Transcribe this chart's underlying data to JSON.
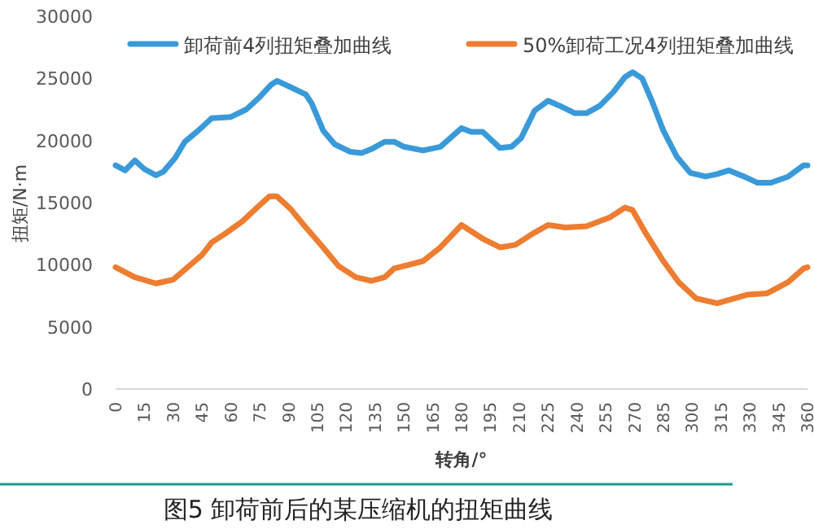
{
  "chart_data": {
    "type": "line",
    "ylabel": "扭矩/N·m",
    "xlabel": "转角/°",
    "legend": "top",
    "grid": false,
    "marker": "none",
    "line_style": "solid",
    "annotations": [
      "图5 卸荷前后的某压缩机的扭矩曲线"
    ],
    "xlim": [
      0,
      360
    ],
    "xticks": [
      0,
      15,
      30,
      45,
      60,
      75,
      90,
      105,
      120,
      135,
      150,
      165,
      180,
      195,
      210,
      225,
      240,
      255,
      270,
      285,
      300,
      315,
      330,
      345,
      360
    ],
    "ylim": [
      0,
      30000
    ],
    "yticks": [
      0,
      5000,
      10000,
      15000,
      20000,
      25000,
      30000
    ],
    "series": [
      {
        "name": "卸荷前4列扭矩叠加曲线",
        "color": "#3a9ad9",
        "x": [
          0,
          5,
          10,
          15,
          21,
          25,
          31,
          36,
          43,
          50,
          60,
          68,
          75,
          81,
          84,
          91,
          99,
          102,
          108,
          114,
          122,
          128,
          133,
          140,
          145,
          150,
          160,
          169,
          180,
          185,
          191,
          200,
          206,
          211,
          218,
          225,
          231,
          239,
          245,
          252,
          259,
          265,
          269,
          274,
          279,
          285,
          292,
          299,
          307,
          313,
          319,
          327,
          334,
          341,
          350,
          358,
          360
        ],
        "values": [
          18000,
          17600,
          18400,
          17700,
          17200,
          17500,
          18600,
          19900,
          20800,
          21800,
          21900,
          22500,
          23500,
          24500,
          24800,
          24300,
          23700,
          23000,
          20800,
          19700,
          19100,
          19000,
          19300,
          19900,
          19900,
          19500,
          19200,
          19500,
          21000,
          20700,
          20700,
          19400,
          19500,
          20200,
          22400,
          23200,
          22800,
          22200,
          22200,
          22800,
          23900,
          25100,
          25500,
          25000,
          23200,
          20800,
          18700,
          17400,
          17100,
          17300,
          17600,
          17100,
          16600,
          16600,
          17100,
          18000,
          18000
        ]
      },
      {
        "name": "50%卸荷工况4列扭矩叠加曲线",
        "color": "#ed7d31",
        "x": [
          0,
          10,
          21,
          30,
          36,
          45,
          50,
          57,
          66,
          75,
          80,
          84,
          91,
          99,
          108,
          116,
          125,
          133,
          140,
          145,
          150,
          160,
          169,
          180,
          191,
          200,
          208,
          217,
          225,
          234,
          245,
          257,
          265,
          269,
          276,
          285,
          293,
          302,
          313,
          322,
          329,
          339,
          350,
          358,
          360
        ],
        "values": [
          9800,
          9000,
          8500,
          8800,
          9600,
          10800,
          11800,
          12500,
          13500,
          14800,
          15500,
          15500,
          14500,
          13000,
          11400,
          9900,
          9000,
          8700,
          9000,
          9700,
          9900,
          10300,
          11400,
          13200,
          12100,
          11400,
          11600,
          12500,
          13200,
          13000,
          13100,
          13800,
          14600,
          14400,
          12500,
          10300,
          8600,
          7300,
          6900,
          7300,
          7600,
          7700,
          8600,
          9700,
          9800
        ]
      }
    ]
  }
}
